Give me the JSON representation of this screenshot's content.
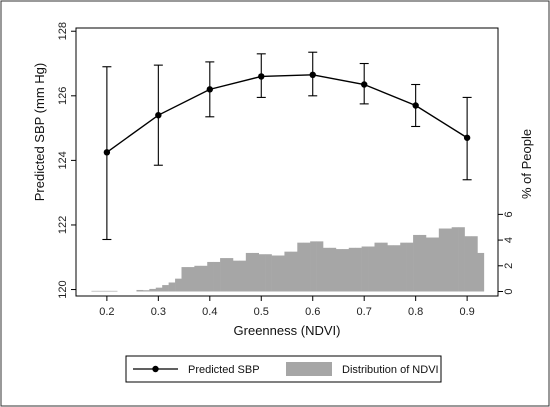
{
  "chart_data": {
    "type": "line",
    "x_axis": {
      "label": "Greenness (NDVI)",
      "range": [
        0.14,
        0.96
      ],
      "ticks": [
        "0.2",
        "0.3",
        "0.4",
        "0.5",
        "0.6",
        "0.7",
        "0.8",
        "0.9"
      ]
    },
    "y_axis_left": {
      "label": "Predicted SBP (mm Hg)",
      "range": [
        119.8,
        128.1
      ],
      "ticks": [
        "120",
        "122",
        "124",
        "126",
        "128"
      ]
    },
    "y_axis_right": {
      "label": "% of People",
      "range": [
        -0.35,
        20.5
      ],
      "ticks": [
        "0",
        "2",
        "4",
        "6"
      ]
    },
    "series": [
      {
        "name": "Predicted SBP",
        "type": "line-errorbar",
        "color": "#000000",
        "x": [
          0.2,
          0.3,
          0.4,
          0.5,
          0.6,
          0.7,
          0.8,
          0.9
        ],
        "y": [
          124.25,
          125.4,
          126.2,
          126.6,
          126.65,
          126.35,
          125.7,
          124.7
        ],
        "lower": [
          121.55,
          123.85,
          125.35,
          125.95,
          126.0,
          125.75,
          125.05,
          123.4
        ],
        "upper": [
          126.9,
          126.95,
          127.05,
          127.3,
          127.35,
          127.0,
          126.35,
          125.95
        ]
      },
      {
        "name": "Distribution of NDVI",
        "type": "histogram",
        "color": "#a6a6a6",
        "bin_width": 0.0125,
        "bins_start": [
          0.17,
          0.1825,
          0.195,
          0.2075,
          0.22,
          0.2325,
          0.245,
          0.2575,
          0.27,
          0.2825,
          0.295,
          0.3075,
          0.32,
          0.3325,
          0.345,
          0.3575,
          0.37,
          0.3825,
          0.395,
          0.4075,
          0.42,
          0.4325,
          0.445,
          0.4575,
          0.47,
          0.4825,
          0.495,
          0.5075,
          0.52,
          0.5325,
          0.545,
          0.5575,
          0.57,
          0.5825,
          0.595,
          0.6075,
          0.62,
          0.6325,
          0.645,
          0.6575,
          0.67,
          0.6825,
          0.695,
          0.7075,
          0.72,
          0.7325,
          0.745,
          0.7575,
          0.77,
          0.7825,
          0.795,
          0.8075,
          0.82,
          0.8325,
          0.845,
          0.8575,
          0.87,
          0.8825,
          0.895,
          0.9075,
          0.92
        ],
        "values": [
          0.05,
          0.05,
          0.05,
          0.05,
          0,
          0,
          0,
          0.12,
          0.1,
          0.2,
          0.3,
          0.5,
          0.7,
          1.0,
          1.9,
          1.9,
          2.0,
          2.0,
          2.3,
          2.3,
          2.6,
          2.6,
          2.4,
          2.4,
          3.0,
          3.0,
          2.9,
          2.9,
          2.8,
          2.8,
          3.1,
          3.1,
          3.8,
          3.8,
          3.9,
          3.9,
          3.4,
          3.4,
          3.3,
          3.3,
          3.4,
          3.4,
          3.5,
          3.5,
          3.8,
          3.8,
          3.6,
          3.6,
          3.8,
          3.8,
          4.4,
          4.4,
          4.2,
          4.2,
          4.9,
          4.9,
          5.0,
          5.0,
          4.3,
          4.3,
          3.0
        ]
      }
    ],
    "legend": {
      "placement": "bottom",
      "entries": [
        "Predicted SBP",
        "Distribution of NDVI"
      ]
    },
    "grid": false
  }
}
